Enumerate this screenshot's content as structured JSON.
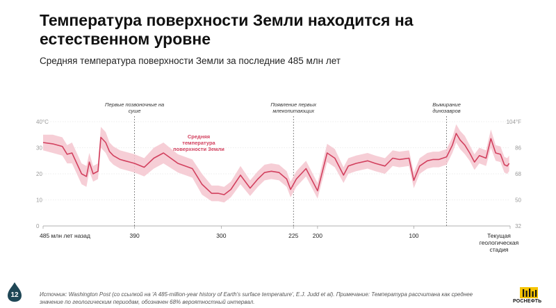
{
  "title": "Температура поверхности Земли находится на естественном уровне",
  "subtitle": "Средняя температура поверхности Земли за последние 485 млн лет",
  "page_number": "12",
  "source": "Источник: Washington Post (со ссылкой на 'A 485-million-year history of Earth's surface temperature', E.J. Judd et al). Примечание: Температура рассчитана как среднее значение по геологическим периодам, обозначен 68% вероятностный интервал.",
  "logo": {
    "text": "РОСНЕФТЬ",
    "icon": "rosneft-logo-icon"
  },
  "colors": {
    "series": "#d2405e",
    "band": "#f4c6cf",
    "grid": "#cfcfcf",
    "badge": "#1f4756"
  },
  "chart_data": {
    "type": "line",
    "x_reversed": true,
    "xlim": [
      485,
      0
    ],
    "ylim": [
      0,
      40
    ],
    "y_ticks_left": [
      "40°C",
      "30",
      "20",
      "10",
      "0"
    ],
    "y_ticks_right": [
      "104°F",
      "86",
      "68",
      "50",
      "32"
    ],
    "x_ticks": [
      {
        "x": 485,
        "label": "485 млн лет назад"
      },
      {
        "x": 390,
        "label": "390"
      },
      {
        "x": 300,
        "label": "300"
      },
      {
        "x": 225,
        "label": "225"
      },
      {
        "x": 200,
        "label": "200"
      },
      {
        "x": 100,
        "label": "100"
      },
      {
        "x": 0,
        "label": "Текущая геологическая стадия"
      }
    ],
    "series_label": "Средняя температура поверхности Земли",
    "events": [
      {
        "x": 390,
        "label": "Первые позвоночные на суше"
      },
      {
        "x": 225,
        "label": "Появление первых млекопитающих"
      },
      {
        "x": 66,
        "label": "Вымирание динозавров"
      }
    ],
    "series": [
      {
        "x": [
          485,
          475,
          465,
          460,
          455,
          445,
          440,
          437,
          433,
          428,
          425,
          420,
          416,
          412,
          405,
          400,
          395,
          390,
          380,
          370,
          360,
          345,
          330,
          320,
          310,
          303,
          297,
          290,
          280,
          270,
          262,
          255,
          248,
          240,
          232,
          228,
          222,
          212,
          200,
          190,
          182,
          173,
          168,
          160,
          148,
          140,
          130,
          122,
          115,
          105,
          100,
          94,
          86,
          80,
          74,
          66,
          60,
          56,
          52,
          47,
          42,
          37,
          32,
          25,
          20,
          15,
          10,
          6,
          3,
          1
        ],
        "values": [
          32,
          31.5,
          30.5,
          27.5,
          28,
          20,
          19,
          24.5,
          20,
          21,
          34,
          32,
          28.5,
          27,
          25.5,
          25,
          24.5,
          24,
          22.5,
          26,
          28,
          24,
          22,
          16,
          12.5,
          12.5,
          12,
          14,
          19.5,
          14.5,
          18,
          20.5,
          21,
          20.5,
          18,
          14,
          18,
          22,
          13.5,
          28,
          26,
          19.5,
          23,
          24,
          25,
          24,
          23,
          26,
          25.5,
          26,
          17.5,
          23,
          25,
          25.5,
          25.5,
          26.5,
          31,
          35.5,
          33,
          31,
          28,
          24.5,
          27,
          26,
          33.5,
          28,
          27.5,
          23.5,
          23,
          24
        ],
        "lower": [
          29,
          28,
          27,
          24,
          24,
          16,
          15,
          21,
          17,
          18,
          30,
          28,
          25,
          23.5,
          22,
          21.5,
          21,
          20.5,
          19,
          22,
          24,
          20.5,
          18.5,
          12,
          9.5,
          9.5,
          9,
          11,
          16,
          11.5,
          15,
          17.5,
          18,
          17.5,
          15,
          11,
          15,
          19,
          10.5,
          24.5,
          22.5,
          16.5,
          20,
          21,
          22,
          21,
          20,
          23,
          22.5,
          23,
          14.5,
          20,
          22,
          22.5,
          22.5,
          23.5,
          28,
          32,
          29.5,
          27.5,
          25,
          21.5,
          24,
          23,
          30,
          25,
          24.5,
          20.5,
          20,
          21
        ],
        "upper": [
          35,
          35,
          34,
          31,
          32,
          24,
          23,
          28,
          23,
          24,
          38,
          36,
          32,
          30.5,
          29,
          28.5,
          28,
          27.5,
          26,
          30,
          32,
          27.5,
          25.5,
          20,
          15.5,
          15.5,
          15,
          17,
          23,
          17.5,
          21,
          23.5,
          24,
          23.5,
          21,
          17,
          21,
          25,
          16.5,
          31.5,
          29.5,
          22.5,
          26,
          27,
          28,
          27,
          26,
          29,
          28.5,
          29,
          20.5,
          26,
          28,
          28.5,
          28.5,
          29.5,
          34,
          39,
          36.5,
          34.5,
          31,
          27.5,
          30,
          29,
          37,
          31,
          30.5,
          26.5,
          26,
          27
        ]
      }
    ]
  }
}
